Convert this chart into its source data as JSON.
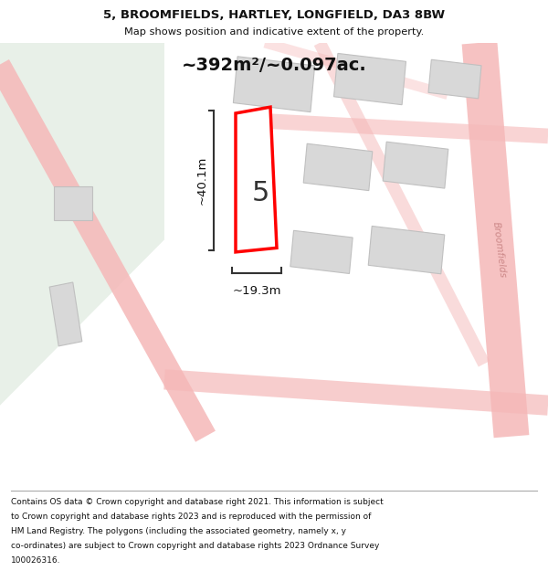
{
  "title_line1": "5, BROOMFIELDS, HARTLEY, LONGFIELD, DA3 8BW",
  "title_line2": "Map shows position and indicative extent of the property.",
  "area_label": "~392m²/~0.097ac.",
  "dim_height": "~40.1m",
  "dim_width": "~19.3m",
  "number_label": "5",
  "footer_lines": [
    "Contains OS data © Crown copyright and database right 2021. This information is subject",
    "to Crown copyright and database rights 2023 and is reproduced with the permission of",
    "HM Land Registry. The polygons (including the associated geometry, namely x, y",
    "co-ordinates) are subject to Crown copyright and database rights 2023 Ordnance Survey",
    "100026316."
  ],
  "bg_color": "#ffffff",
  "green_area_color": "#e8f0e8",
  "road_color": "#f5b8b8",
  "building_color": "#d8d8d8",
  "building_outline": "#c0c0c0",
  "highlight_color": "#ff0000",
  "highlight_fill": "#ffffff",
  "dim_line_color": "#333333"
}
